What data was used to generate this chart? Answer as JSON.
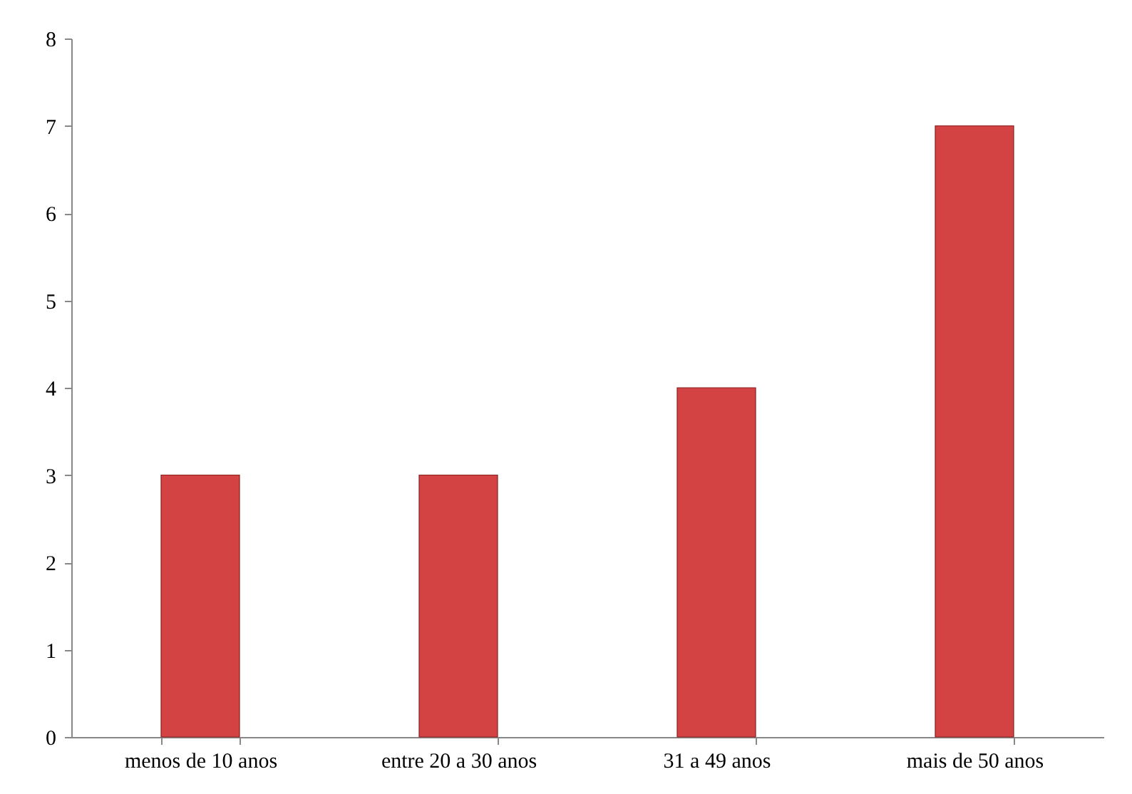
{
  "chart_data": {
    "type": "bar",
    "categories": [
      "menos de 10 anos",
      "entre 20 a 30 anos",
      "31 a 49 anos",
      "mais de 50 anos"
    ],
    "values": [
      3,
      3,
      4,
      7
    ],
    "color": "#d44343",
    "ylim": [
      0,
      8
    ],
    "yticks": [
      0,
      1,
      2,
      3,
      4,
      5,
      6,
      7,
      8
    ],
    "grid": false,
    "legend": false
  }
}
